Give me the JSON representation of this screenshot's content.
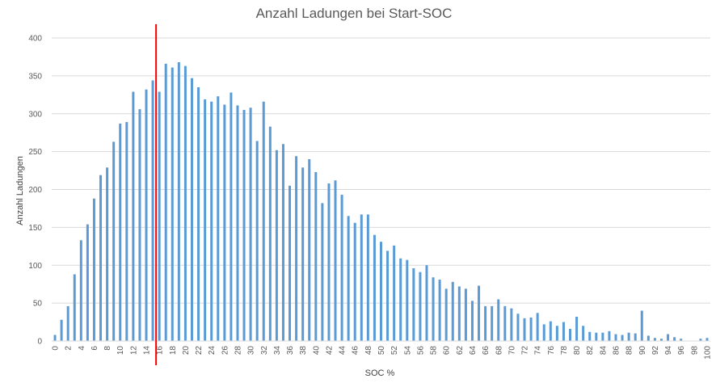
{
  "chart_data": {
    "type": "bar",
    "title": "Anzahl Ladungen bei Start-SOC",
    "xlabel": "SOC %",
    "ylabel": "Anzahl Ladungen",
    "ylim": [
      0,
      400
    ],
    "yticks": [
      0,
      50,
      100,
      150,
      200,
      250,
      300,
      350,
      400
    ],
    "grid": true,
    "legend": "none",
    "categories": [
      0,
      1,
      2,
      3,
      4,
      5,
      6,
      7,
      8,
      9,
      10,
      11,
      12,
      13,
      14,
      15,
      16,
      17,
      18,
      19,
      20,
      21,
      22,
      23,
      24,
      25,
      26,
      27,
      28,
      29,
      30,
      31,
      32,
      33,
      34,
      35,
      36,
      37,
      38,
      39,
      40,
      41,
      42,
      43,
      44,
      45,
      46,
      47,
      48,
      49,
      50,
      51,
      52,
      53,
      54,
      55,
      56,
      57,
      58,
      59,
      60,
      61,
      62,
      63,
      64,
      65,
      66,
      67,
      68,
      69,
      70,
      71,
      72,
      73,
      74,
      75,
      76,
      77,
      78,
      79,
      80,
      81,
      82,
      83,
      84,
      85,
      86,
      87,
      88,
      89,
      90,
      91,
      92,
      93,
      94,
      95,
      96,
      97,
      98,
      99,
      100
    ],
    "xtick_labels": [
      "0",
      "2",
      "4",
      "6",
      "8",
      "10",
      "12",
      "14",
      "16",
      "18",
      "20",
      "22",
      "24",
      "26",
      "28",
      "30",
      "32",
      "34",
      "36",
      "38",
      "40",
      "42",
      "44",
      "46",
      "48",
      "50",
      "52",
      "54",
      "56",
      "58",
      "60",
      "62",
      "64",
      "66",
      "68",
      "70",
      "72",
      "74",
      "76",
      "78",
      "80",
      "82",
      "84",
      "86",
      "88",
      "90",
      "92",
      "94",
      "96",
      "98",
      "100"
    ],
    "values": [
      8,
      28,
      46,
      88,
      133,
      154,
      188,
      219,
      229,
      263,
      287,
      289,
      329,
      306,
      332,
      344,
      329,
      366,
      361,
      368,
      363,
      347,
      335,
      319,
      316,
      323,
      312,
      328,
      311,
      305,
      308,
      264,
      316,
      283,
      252,
      260,
      205,
      244,
      229,
      240,
      223,
      182,
      208,
      212,
      193,
      165,
      156,
      167,
      167,
      140,
      131,
      119,
      126,
      109,
      107,
      96,
      91,
      100,
      84,
      81,
      69,
      78,
      72,
      69,
      53,
      73,
      46,
      46,
      55,
      46,
      43,
      36,
      30,
      31,
      37,
      22,
      26,
      20,
      25,
      16,
      32,
      20,
      12,
      11,
      11,
      13,
      9,
      8,
      11,
      10,
      40,
      7,
      4,
      3,
      9,
      5,
      3,
      0,
      0,
      3,
      4
    ],
    "series_color": "#5b9bd5",
    "marker_line": {
      "x": 15.5,
      "color": "#ff0000"
    }
  }
}
